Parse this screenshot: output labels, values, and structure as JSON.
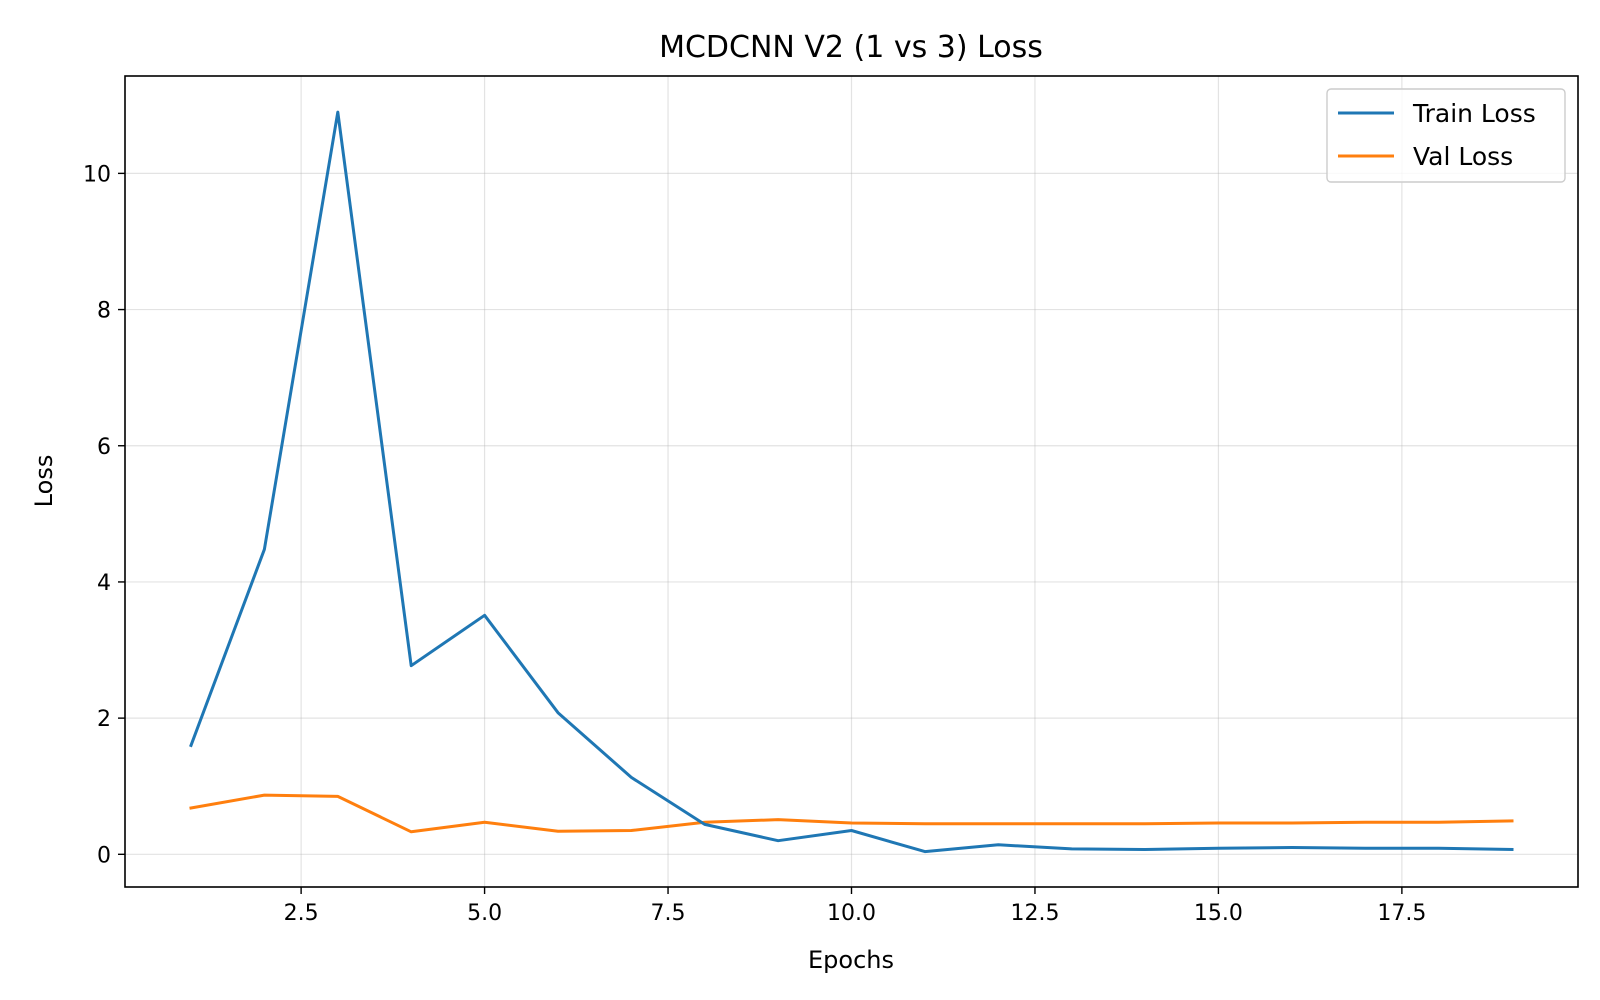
{
  "chart_data": {
    "type": "line",
    "title": "MCDCNN V2 (1 vs 3) Loss",
    "xlabel": "Epochs",
    "ylabel": "Loss",
    "x": [
      1,
      2,
      3,
      4,
      5,
      6,
      7,
      8,
      9,
      10,
      11,
      12,
      13,
      14,
      15,
      16,
      17,
      18,
      19
    ],
    "xlim": [
      0.1,
      19.9
    ],
    "ylim": [
      -0.48,
      11.43
    ],
    "xticks": [
      2.5,
      5.0,
      7.5,
      10.0,
      12.5,
      15.0,
      17.5
    ],
    "xtick_labels": [
      "2.5",
      "5.0",
      "7.5",
      "10.0",
      "12.5",
      "15.0",
      "17.5"
    ],
    "yticks": [
      0,
      2,
      4,
      6,
      8,
      10
    ],
    "ytick_labels": [
      "0",
      "2",
      "4",
      "6",
      "8",
      "10"
    ],
    "grid": true,
    "legend_position": "top-right",
    "series": [
      {
        "name": "Train Loss",
        "color": "#1f77b4",
        "values": [
          1.6,
          4.48,
          10.9,
          2.77,
          3.51,
          2.08,
          1.13,
          0.44,
          0.2,
          0.35,
          0.04,
          0.14,
          0.08,
          0.07,
          0.09,
          0.1,
          0.09,
          0.09,
          0.07
        ]
      },
      {
        "name": "Val Loss",
        "color": "#ff7f0e",
        "values": [
          0.68,
          0.87,
          0.85,
          0.33,
          0.47,
          0.34,
          0.35,
          0.47,
          0.51,
          0.46,
          0.45,
          0.45,
          0.45,
          0.45,
          0.46,
          0.46,
          0.47,
          0.47,
          0.49
        ]
      }
    ]
  }
}
